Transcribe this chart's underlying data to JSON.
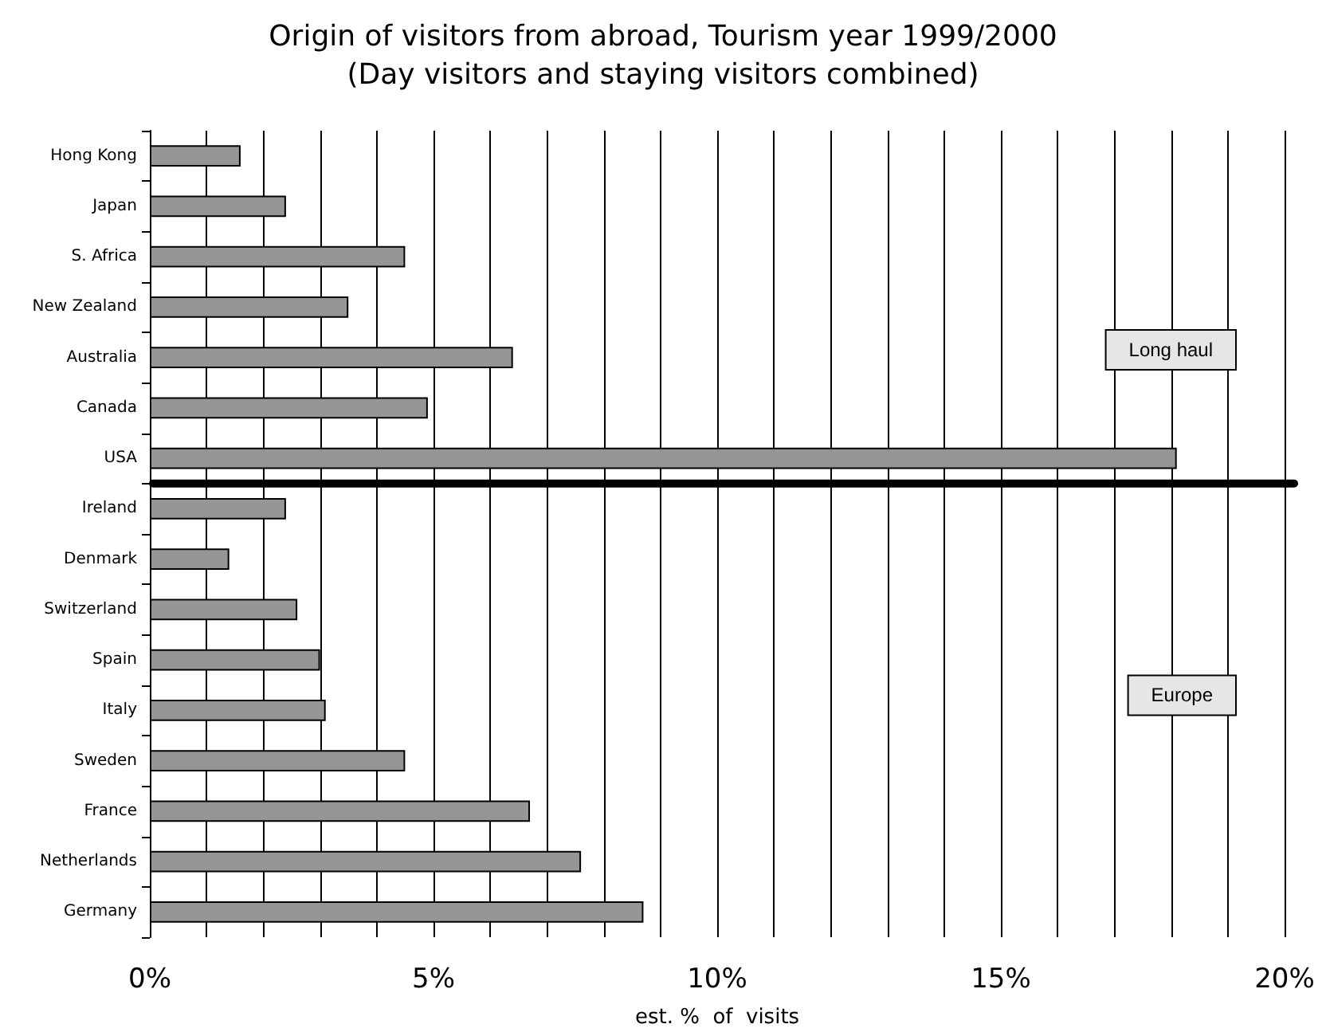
{
  "chart_data": {
    "type": "bar",
    "orientation": "horizontal",
    "title": "Origin of visitors from abroad, Tourism year 1999/2000\n(Day visitors and staying visitors combined)",
    "xlabel": "est. %  of  visits",
    "categories": [
      "Hong Kong",
      "Japan",
      "S. Africa",
      "New Zealand",
      "Australia",
      "Canada",
      "USA",
      "Ireland",
      "Denmark",
      "Switzerland",
      "Spain",
      "Italy",
      "Sweden",
      "France",
      "Netherlands",
      "Germany"
    ],
    "values": [
      1.6,
      2.4,
      4.5,
      3.5,
      6.4,
      4.9,
      18.1,
      2.4,
      1.4,
      2.6,
      3.0,
      3.1,
      4.5,
      6.7,
      7.6,
      8.7
    ],
    "color": "#969696",
    "xlim": [
      0,
      20
    ],
    "xticks": [
      {
        "value": 0,
        "label": "0%"
      },
      {
        "value": 1,
        "label": null
      },
      {
        "value": 2,
        "label": null
      },
      {
        "value": 3,
        "label": null
      },
      {
        "value": 4,
        "label": null
      },
      {
        "value": 5,
        "label": "5%"
      },
      {
        "value": 6,
        "label": null
      },
      {
        "value": 7,
        "label": null
      },
      {
        "value": 8,
        "label": null
      },
      {
        "value": 9,
        "label": null
      },
      {
        "value": 10,
        "label": "10%"
      },
      {
        "value": 11,
        "label": null
      },
      {
        "value": 12,
        "label": null
      },
      {
        "value": 13,
        "label": null
      },
      {
        "value": 14,
        "label": null
      },
      {
        "value": 15,
        "label": "15%"
      },
      {
        "value": 16,
        "label": null
      },
      {
        "value": 17,
        "label": null
      },
      {
        "value": 18,
        "label": null
      },
      {
        "value": 19,
        "label": null
      },
      {
        "value": 20,
        "label": "20%"
      }
    ],
    "grid": "x",
    "annotations": [
      "Long haul",
      "Europe"
    ],
    "ref_lines": [
      {
        "axis": "y",
        "value": "Ireland",
        "color": "#000000"
      }
    ]
  }
}
